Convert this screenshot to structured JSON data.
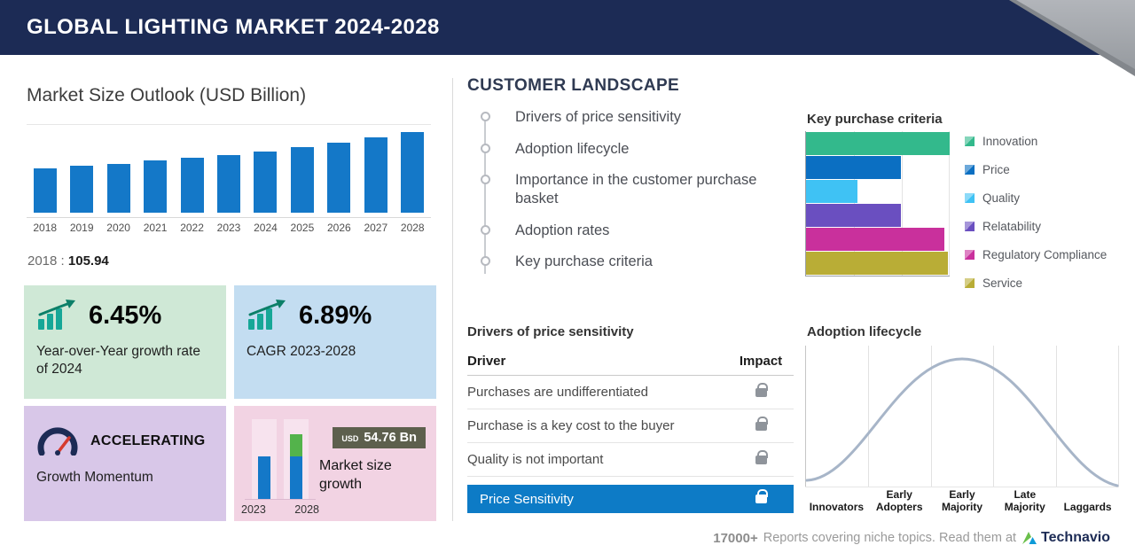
{
  "header": {
    "title": "GLOBAL LIGHTING MARKET 2024-2028"
  },
  "colors": {
    "header_bg": "#1c2b55",
    "accent_blue": "#1478c8",
    "highlight_row_blue": "#0d7bc6",
    "card_green": "#cfe8d6",
    "card_blue": "#c3ddf1",
    "card_purple": "#d8c7e8",
    "card_pink": "#f2d3e3"
  },
  "icons": {
    "growth": "bar-chart-growth-icon",
    "momentum": "speedometer-icon",
    "impact": "lock-icon",
    "brand": "technavio-logo-icon"
  },
  "market_outlook": {
    "title": "Market Size Outlook (USD Billion)",
    "base_year": "2018",
    "separator": " : ",
    "base_value": "105.94"
  },
  "cards": {
    "yoy": {
      "value": "6.45%",
      "label": "Year-over-Year growth rate of 2024"
    },
    "cagr": {
      "value": "6.89%",
      "label": "CAGR 2023-2028"
    },
    "momentum": {
      "value": "ACCELERATING",
      "label": "Growth Momentum"
    },
    "growth": {
      "currency": "USD",
      "amount": "54.76 Bn",
      "label": "Market size growth",
      "years": [
        "2023",
        "2028"
      ]
    }
  },
  "customer_landscape": {
    "title": "CUSTOMER LANDSCAPE",
    "items": [
      "Drivers of price sensitivity",
      "Adoption lifecycle",
      "Importance in the customer purchase basket",
      "Adoption rates",
      "Key purchase criteria"
    ]
  },
  "kpc": {
    "title": "Key purchase criteria"
  },
  "price_table": {
    "title": "Drivers of price sensitivity",
    "col_driver": "Driver",
    "col_impact": "Impact",
    "rows": [
      "Purchases are undifferentiated",
      "Purchase is a key cost to the buyer",
      "Quality is not important"
    ],
    "highlight": "Price Sensitivity"
  },
  "adoption": {
    "title": "Adoption lifecycle"
  },
  "footer": {
    "count": "17000+",
    "text": "Reports covering niche topics. Read them at",
    "brand": "Technavio"
  },
  "chart_data": [
    {
      "id": "market_size",
      "type": "bar",
      "title": "Market Size Outlook (USD Billion)",
      "categories": [
        "2018",
        "2019",
        "2020",
        "2021",
        "2022",
        "2023",
        "2024",
        "2025",
        "2026",
        "2027",
        "2028"
      ],
      "values": [
        105.94,
        111.8,
        117.9,
        124.4,
        131.2,
        138.5,
        147.4,
        157.5,
        168.4,
        180.0,
        193.3
      ],
      "estimated": true,
      "labeled_point": {
        "x": "2018",
        "y": 105.94
      },
      "bar_color": "#1478c8",
      "ylim": [
        0,
        200
      ],
      "grid": false
    },
    {
      "id": "key_purchase_criteria",
      "type": "bar",
      "orientation": "horizontal",
      "title": "Key purchase criteria",
      "categories": [
        "Innovation",
        "Price",
        "Quality",
        "Relatability",
        "Regulatory Compliance",
        "Service"
      ],
      "values": [
        100,
        66,
        36,
        66,
        96,
        99
      ],
      "estimated": true,
      "unit": "relative bar length",
      "colors": [
        "#33b98c",
        "#0b6fc2",
        "#3fc2f4",
        "#6a4fc0",
        "#c9309c",
        "#b9ad36"
      ],
      "legend_position": "right"
    },
    {
      "id": "market_size_growth_mini",
      "type": "bar",
      "categories": [
        "2023",
        "2028"
      ],
      "values": [
        138.5,
        193.3
      ],
      "estimated": true,
      "growth_badge": "USD 54.76 Bn"
    },
    {
      "id": "adoption_lifecycle",
      "type": "area",
      "curve": "bell",
      "title": "Adoption lifecycle",
      "stages": [
        "Innovators",
        "Early Adopters",
        "Early Majority",
        "Late Majority",
        "Laggards"
      ]
    }
  ]
}
